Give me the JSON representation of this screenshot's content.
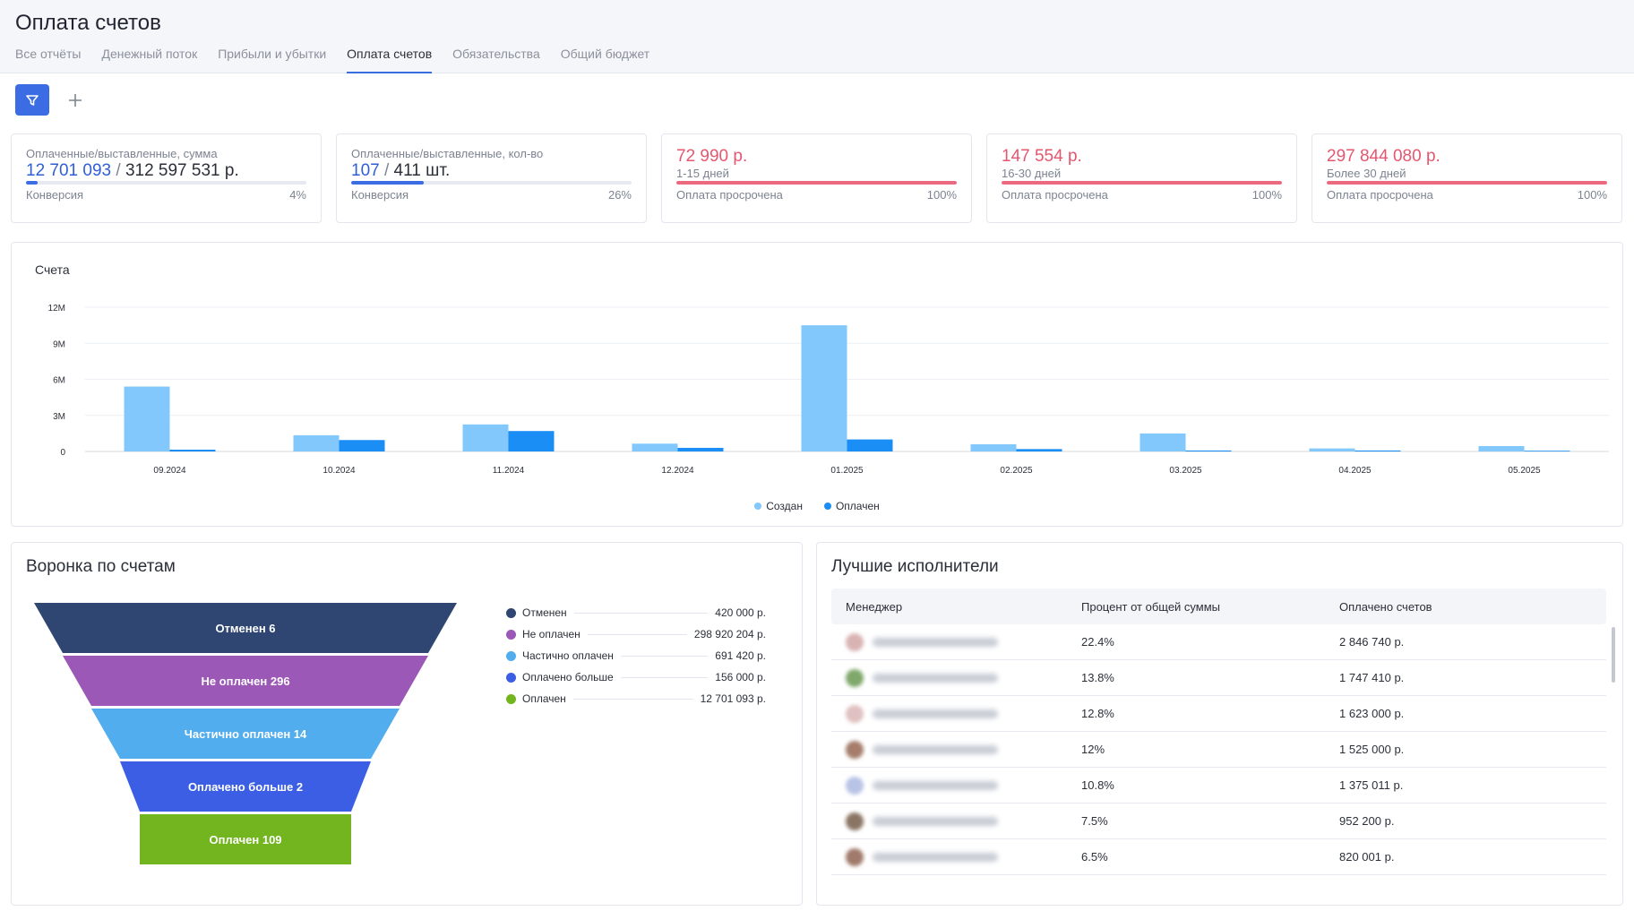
{
  "header": {
    "title": "Оплата счетов",
    "tabs": [
      {
        "label": "Все отчёты",
        "active": false
      },
      {
        "label": "Денежный поток",
        "active": false
      },
      {
        "label": "Прибыли и убытки",
        "active": false
      },
      {
        "label": "Оплата счетов",
        "active": true
      },
      {
        "label": "Обязательства",
        "active": false
      },
      {
        "label": "Общий бюджет",
        "active": false
      }
    ]
  },
  "toolbar": {
    "filter_icon": "filter-icon",
    "add_icon": "plus-icon"
  },
  "kpis": {
    "sum": {
      "label": "Оплаченные/выставленные, сумма",
      "paid": "12 701 093",
      "sep": "/",
      "total": "312 597 531 р.",
      "foot_label": "Конверсия",
      "foot_value": "4%",
      "progress": 4
    },
    "count": {
      "label": "Оплаченные/выставленные, кол-во",
      "paid": "107",
      "sep": "/",
      "total": "411 шт.",
      "foot_label": "Конверсия",
      "foot_value": "26%",
      "progress": 26
    },
    "overdue1": {
      "value": "72 990 р.",
      "sub": "1-15 дней",
      "foot_label": "Оплата просрочена",
      "foot_value": "100%",
      "progress": 100
    },
    "overdue2": {
      "value": "147 554 р.",
      "sub": "16-30 дней",
      "foot_label": "Оплата просрочена",
      "foot_value": "100%",
      "progress": 100
    },
    "overdue3": {
      "value": "297 844 080 р.",
      "sub": "Более 30 дней",
      "foot_label": "Оплата просрочена",
      "foot_value": "100%",
      "progress": 100
    }
  },
  "chart_data": {
    "type": "bar",
    "title": "Счета",
    "categories": [
      "09.2024",
      "10.2024",
      "11.2024",
      "12.2024",
      "01.2025",
      "02.2025",
      "03.2025",
      "04.2025",
      "05.2025"
    ],
    "series": [
      {
        "name": "Создан",
        "color": "#82c8fd",
        "values": [
          5400000,
          1350000,
          2250000,
          650000,
          10500000,
          600000,
          1500000,
          250000,
          450000
        ]
      },
      {
        "name": "Оплачен",
        "color": "#1a8ef5",
        "values": [
          150000,
          950000,
          1700000,
          300000,
          1000000,
          200000,
          80000,
          80000,
          60000
        ]
      }
    ],
    "yticks": [
      {
        "v": 0,
        "label": "0"
      },
      {
        "v": 3000000,
        "label": "3M"
      },
      {
        "v": 6000000,
        "label": "6M"
      },
      {
        "v": 9000000,
        "label": "9M"
      },
      {
        "v": 12000000,
        "label": "12M"
      }
    ],
    "ylim": [
      0,
      12000000
    ],
    "grid": true,
    "legend_position": "bottom"
  },
  "funnel": {
    "title": "Воронка по счетам",
    "stages": [
      {
        "label": "Отменен 6",
        "color": "#2e4671"
      },
      {
        "label": "Не оплачен 296",
        "color": "#9b58b6"
      },
      {
        "label": "Частично оплачен 14",
        "color": "#52adef"
      },
      {
        "label": "Оплачено больше 2",
        "color": "#3b5ee4"
      },
      {
        "label": "Оплачен 109",
        "color": "#72b51e"
      }
    ],
    "legend": [
      {
        "name": "Отменен",
        "value": "420 000 р.",
        "color": "#2e4671"
      },
      {
        "name": "Не оплачен",
        "value": "298 920 204 р.",
        "color": "#9b58b6"
      },
      {
        "name": "Частично оплачен",
        "value": "691 420 р.",
        "color": "#52adef"
      },
      {
        "name": "Оплачено больше",
        "value": "156 000 р.",
        "color": "#3b5ee4"
      },
      {
        "name": "Оплачен",
        "value": "12 701 093 р.",
        "color": "#72b51e"
      }
    ]
  },
  "performers": {
    "title": "Лучшие исполнители",
    "columns": [
      "Менеджер",
      "Процент от общей суммы",
      "Оплачено счетов"
    ],
    "rows": [
      {
        "percent": "22.4%",
        "amount": "2 846 740 р.",
        "avatar_color": "#d9b3b3"
      },
      {
        "percent": "13.8%",
        "amount": "1 747 410 р.",
        "avatar_color": "#7fa86a"
      },
      {
        "percent": "12.8%",
        "amount": "1 623 000 р.",
        "avatar_color": "#e0c0c0"
      },
      {
        "percent": "12%",
        "amount": "1 525 000 р.",
        "avatar_color": "#a57d6a"
      },
      {
        "percent": "10.8%",
        "amount": "1 375 011 р.",
        "avatar_color": "#b8c3e6"
      },
      {
        "percent": "7.5%",
        "amount": "952 200 р.",
        "avatar_color": "#8a7564"
      },
      {
        "percent": "6.5%",
        "amount": "820 001 р.",
        "avatar_color": "#a07a6a"
      }
    ]
  }
}
